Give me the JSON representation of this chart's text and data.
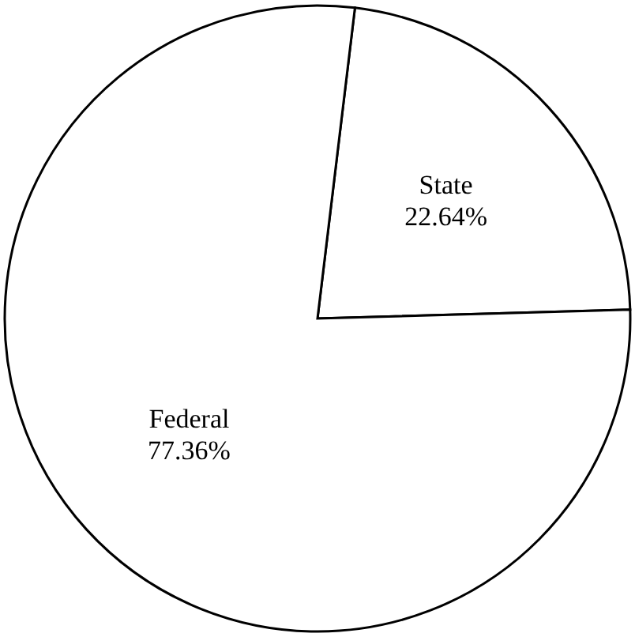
{
  "chart_data": {
    "type": "pie",
    "categories": [
      "State",
      "Federal"
    ],
    "values": [
      22.64,
      77.36
    ],
    "colors": [
      "#ffffff",
      "#ffffff"
    ],
    "value_labels": [
      "22.64%",
      "77.36%"
    ]
  }
}
